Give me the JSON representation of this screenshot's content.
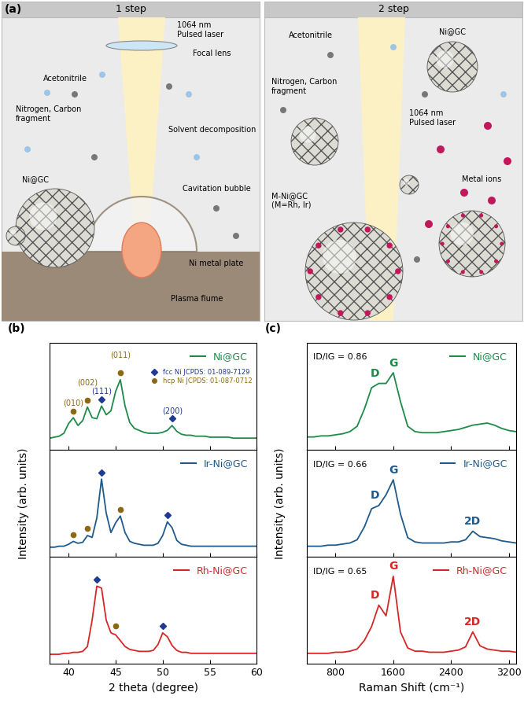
{
  "panel_a": {
    "label": "(a)",
    "steps": [
      {
        "title": "1 step",
        "texts": [
          "1064 nm\nPulsed laser",
          "Focal lens",
          "Acetonitrile",
          "Nitrogen, Carbon\nfragment",
          "Solvent decomposition",
          "Cavitation bubble",
          "Ni@GC",
          "Ni metal plate",
          "Plasma flume"
        ]
      },
      {
        "title": "2 step",
        "texts": [
          "Ni@GC",
          "Acetonitrile",
          "Nitrogen, Carbon\nfragment",
          "1064 nm\nPulsed laser",
          "Metal ions",
          "M-Ni@GC\n(M=Rh, Ir)"
        ]
      }
    ]
  },
  "chart_data": [
    {
      "type": "line",
      "label": "(b)",
      "x_label": "2 theta (degree)",
      "y_label": "Intensity (arb. units)",
      "x": [
        38,
        38.5,
        39,
        39.5,
        40,
        40.5,
        41,
        41.5,
        42,
        42.5,
        43,
        43.5,
        44,
        44.5,
        45,
        45.5,
        46,
        46.5,
        47,
        47.5,
        48,
        48.5,
        49,
        49.5,
        50,
        50.5,
        51,
        51.5,
        52,
        52.5,
        53,
        53.5,
        54,
        54.5,
        55,
        55.5,
        56,
        56.5,
        57,
        57.5,
        58,
        58.5,
        59,
        59.5,
        60
      ],
      "xlim": [
        38,
        60
      ],
      "xticks": [
        40,
        45,
        50,
        55,
        60
      ],
      "ylim": [
        0,
        1.1
      ],
      "yticks": [],
      "tick_labels": "x",
      "legend": "upper right",
      "phases": [
        {
          "name": "fcc Ni JCPDS: 01-089-7129",
          "marker": "diamond",
          "color": "#1f3a93"
        },
        {
          "name": "hcp Ni JCPDS: 01-087-0712",
          "marker": "circle",
          "color": "#8b6914"
        }
      ],
      "series": [
        {
          "name": "Ni@GC",
          "color": "#1e8a4a",
          "values": [
            0.12,
            0.13,
            0.14,
            0.17,
            0.27,
            0.33,
            0.25,
            0.3,
            0.44,
            0.33,
            0.32,
            0.45,
            0.36,
            0.4,
            0.6,
            0.72,
            0.45,
            0.28,
            0.22,
            0.2,
            0.18,
            0.17,
            0.17,
            0.17,
            0.18,
            0.2,
            0.25,
            0.19,
            0.16,
            0.15,
            0.15,
            0.14,
            0.14,
            0.14,
            0.13,
            0.13,
            0.13,
            0.13,
            0.13,
            0.12,
            0.12,
            0.12,
            0.12,
            0.12,
            0.12
          ],
          "peaks": [
            {
              "x": 40.5,
              "phase": "hcp Ni JCPDS: 01-087-0712",
              "label": "(010)"
            },
            {
              "x": 42,
              "phase": "hcp Ni JCPDS: 01-087-0712",
              "label": "(002)"
            },
            {
              "x": 43.5,
              "phase": "fcc Ni JCPDS: 01-089-7129",
              "label": "(111)"
            },
            {
              "x": 45.5,
              "phase": "hcp Ni JCPDS: 01-087-0712",
              "label": "(011)"
            },
            {
              "x": 51,
              "phase": "fcc Ni JCPDS: 01-089-7129",
              "label": "(200)"
            }
          ]
        },
        {
          "name": "Ir-Ni@GC",
          "color": "#1f5a8c",
          "values": [
            0.1,
            0.1,
            0.11,
            0.11,
            0.13,
            0.16,
            0.14,
            0.15,
            0.22,
            0.2,
            0.4,
            0.8,
            0.45,
            0.25,
            0.35,
            0.42,
            0.25,
            0.16,
            0.14,
            0.13,
            0.12,
            0.12,
            0.12,
            0.14,
            0.22,
            0.36,
            0.3,
            0.17,
            0.13,
            0.12,
            0.11,
            0.11,
            0.11,
            0.11,
            0.11,
            0.11,
            0.11,
            0.11,
            0.11,
            0.11,
            0.11,
            0.11,
            0.11,
            0.11,
            0.11
          ],
          "peaks": [
            {
              "x": 40.5,
              "phase": "hcp Ni JCPDS: 01-087-0712"
            },
            {
              "x": 42,
              "phase": "hcp Ni JCPDS: 01-087-0712"
            },
            {
              "x": 43.5,
              "phase": "fcc Ni JCPDS: 01-089-7129"
            },
            {
              "x": 45.5,
              "phase": "hcp Ni JCPDS: 01-087-0712"
            },
            {
              "x": 50.5,
              "phase": "fcc Ni JCPDS: 01-089-7129"
            }
          ]
        },
        {
          "name": "Rh-Ni@GC",
          "color": "#d62728",
          "values": [
            0.1,
            0.1,
            0.1,
            0.11,
            0.11,
            0.12,
            0.12,
            0.13,
            0.18,
            0.45,
            0.8,
            0.78,
            0.45,
            0.32,
            0.3,
            0.24,
            0.18,
            0.15,
            0.14,
            0.13,
            0.13,
            0.13,
            0.14,
            0.2,
            0.32,
            0.28,
            0.19,
            0.14,
            0.12,
            0.12,
            0.11,
            0.11,
            0.11,
            0.11,
            0.11,
            0.11,
            0.11,
            0.11,
            0.11,
            0.11,
            0.11,
            0.11,
            0.11,
            0.11,
            0.11
          ],
          "peaks": [
            {
              "x": 43,
              "phase": "fcc Ni JCPDS: 01-089-7129"
            },
            {
              "x": 45,
              "phase": "hcp Ni JCPDS: 01-087-0712"
            },
            {
              "x": 50,
              "phase": "fcc Ni JCPDS: 01-089-7129"
            }
          ]
        }
      ]
    },
    {
      "type": "line",
      "label": "(c)",
      "x_label": "Raman Shift (cm⁻¹)",
      "y_label": "Intensity (arb. units)",
      "x": [
        400,
        500,
        600,
        700,
        800,
        900,
        1000,
        1100,
        1200,
        1300,
        1400,
        1500,
        1600,
        1700,
        1800,
        1900,
        2000,
        2100,
        2200,
        2300,
        2400,
        2500,
        2600,
        2700,
        2800,
        2900,
        3000,
        3100,
        3200,
        3300
      ],
      "xlim": [
        400,
        3300
      ],
      "xticks": [
        800,
        1600,
        2400,
        3200
      ],
      "ylim": [
        0,
        1
      ],
      "yticks": [],
      "tick_labels": "x",
      "legend": "upper right",
      "series": [
        {
          "name": "Ni@GC",
          "color": "#1e8a4a",
          "ratio_label": "ID/IG = 0.86",
          "values": [
            0.12,
            0.12,
            0.13,
            0.13,
            0.14,
            0.15,
            0.17,
            0.22,
            0.38,
            0.58,
            0.62,
            0.62,
            0.72,
            0.45,
            0.22,
            0.17,
            0.16,
            0.16,
            0.16,
            0.17,
            0.18,
            0.19,
            0.21,
            0.23,
            0.24,
            0.25,
            0.23,
            0.2,
            0.18,
            0.17
          ],
          "bands": [
            {
              "x": 1350,
              "label": "D"
            },
            {
              "x": 1600,
              "label": "G"
            }
          ]
        },
        {
          "name": "Ir-Ni@GC",
          "color": "#1f5a8c",
          "ratio_label": "ID/IG = 0.66",
          "values": [
            0.1,
            0.1,
            0.1,
            0.11,
            0.11,
            0.12,
            0.13,
            0.16,
            0.28,
            0.45,
            0.48,
            0.58,
            0.72,
            0.4,
            0.18,
            0.14,
            0.13,
            0.13,
            0.13,
            0.13,
            0.14,
            0.14,
            0.16,
            0.24,
            0.19,
            0.18,
            0.17,
            0.15,
            0.14,
            0.13
          ],
          "bands": [
            {
              "x": 1350,
              "label": "D"
            },
            {
              "x": 1600,
              "label": "G"
            },
            {
              "x": 2700,
              "label": "2D"
            }
          ]
        },
        {
          "name": "Rh-Ni@GC",
          "color": "#d62728",
          "ratio_label": "ID/IG = 0.65",
          "values": [
            0.1,
            0.1,
            0.1,
            0.1,
            0.11,
            0.11,
            0.12,
            0.14,
            0.22,
            0.35,
            0.55,
            0.45,
            0.82,
            0.3,
            0.15,
            0.12,
            0.12,
            0.11,
            0.11,
            0.11,
            0.12,
            0.13,
            0.16,
            0.3,
            0.17,
            0.14,
            0.13,
            0.12,
            0.12,
            0.11
          ],
          "bands": [
            {
              "x": 1350,
              "label": "D"
            },
            {
              "x": 1600,
              "label": "G"
            },
            {
              "x": 2700,
              "label": "2D"
            }
          ]
        }
      ]
    }
  ]
}
